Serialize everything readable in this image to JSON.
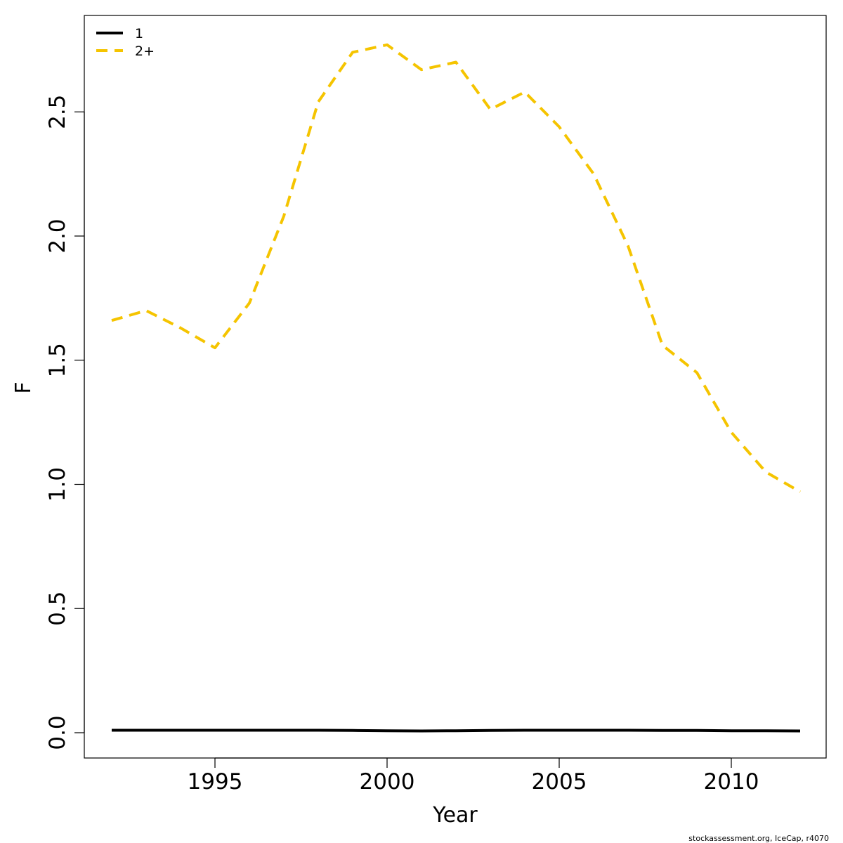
{
  "chart_data": {
    "type": "line",
    "title": "",
    "xlabel": "Year",
    "ylabel": "F",
    "xlim": [
      1992,
      2012
    ],
    "ylim": [
      0,
      2.75
    ],
    "x_ticks": [
      1995,
      2000,
      2005,
      2010
    ],
    "y_ticks": [
      "0.0",
      "0.5",
      "1.0",
      "1.5",
      "2.0",
      "2.5"
    ],
    "grid": false,
    "legend_position": "top-left",
    "x": [
      1992,
      1993,
      1994,
      1995,
      1996,
      1997,
      1998,
      1999,
      2000,
      2001,
      2002,
      2003,
      2004,
      2005,
      2006,
      2007,
      2008,
      2009,
      2010,
      2011,
      2012
    ],
    "series": [
      {
        "name": "1",
        "color": "#000000",
        "line_style": "solid",
        "values": [
          0.01,
          0.01,
          0.01,
          0.01,
          0.01,
          0.01,
          0.01,
          0.009,
          0.008,
          0.007,
          0.008,
          0.009,
          0.01,
          0.01,
          0.01,
          0.01,
          0.009,
          0.009,
          0.008,
          0.008,
          0.007
        ]
      },
      {
        "name": "2+",
        "color": "#f5c400",
        "line_style": "dashed",
        "values": [
          1.66,
          1.7,
          1.63,
          1.55,
          1.73,
          2.08,
          2.54,
          2.74,
          2.77,
          2.67,
          2.7,
          2.51,
          2.58,
          2.44,
          2.25,
          1.96,
          1.56,
          1.45,
          1.21,
          1.05,
          0.97
        ]
      }
    ]
  },
  "footer": {
    "note": "stockassessment.org, IceCap, r4070"
  }
}
